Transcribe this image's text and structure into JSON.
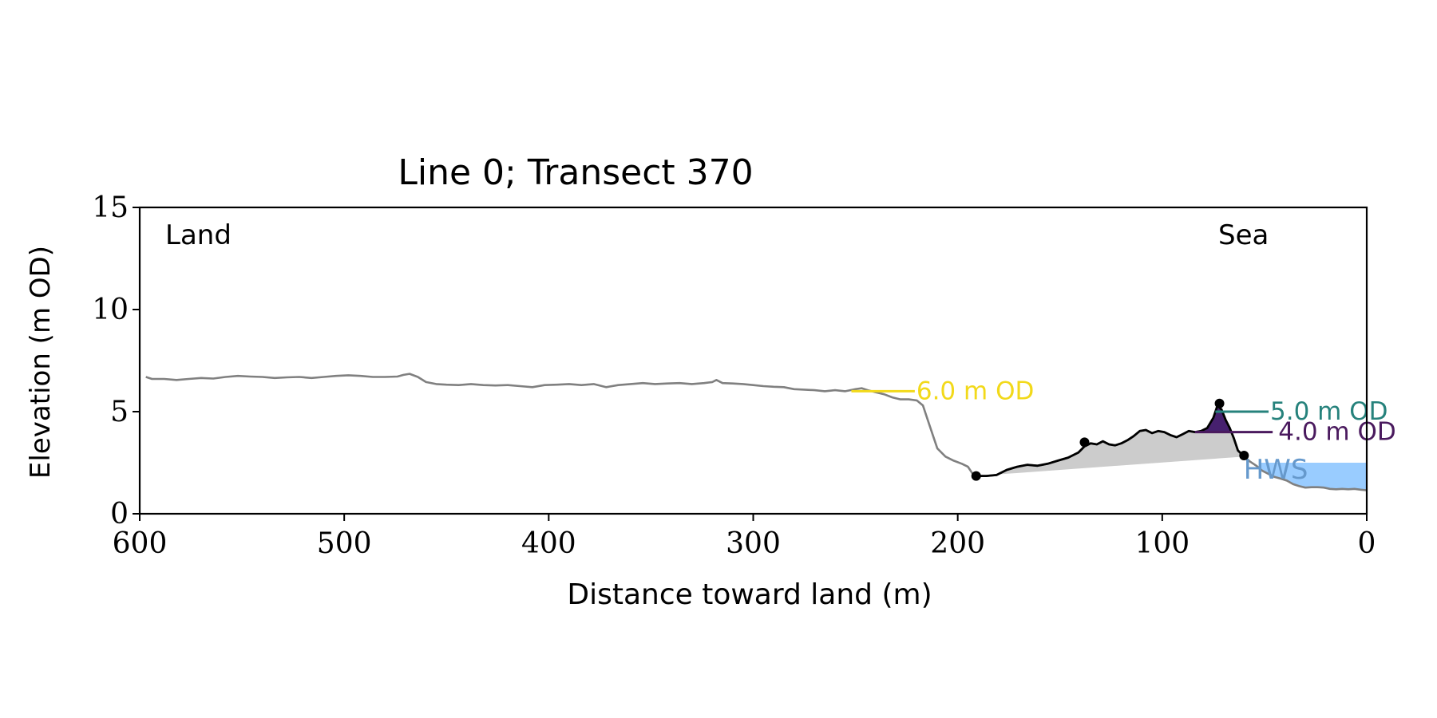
{
  "chart_data": {
    "type": "line",
    "title": "Line 0; Transect 370",
    "xlabel": "Distance toward land (m)",
    "ylabel": "Elevation (m OD)",
    "xlim": [
      600,
      0
    ],
    "ylim": [
      0,
      15
    ],
    "x_ticks": [
      600,
      500,
      400,
      300,
      200,
      100,
      0
    ],
    "y_ticks": [
      0,
      5,
      10,
      15
    ],
    "grid": false,
    "annotations": {
      "left": "Land",
      "right": "Sea"
    },
    "profile": {
      "color": "#808080",
      "points": [
        [
          597,
          6.7
        ],
        [
          594,
          6.6
        ],
        [
          588,
          6.6
        ],
        [
          582,
          6.55
        ],
        [
          576,
          6.6
        ],
        [
          570,
          6.65
        ],
        [
          564,
          6.62
        ],
        [
          558,
          6.7
        ],
        [
          552,
          6.75
        ],
        [
          546,
          6.72
        ],
        [
          540,
          6.7
        ],
        [
          534,
          6.65
        ],
        [
          528,
          6.68
        ],
        [
          522,
          6.7
        ],
        [
          516,
          6.65
        ],
        [
          510,
          6.7
        ],
        [
          504,
          6.75
        ],
        [
          498,
          6.78
        ],
        [
          492,
          6.75
        ],
        [
          486,
          6.7
        ],
        [
          480,
          6.7
        ],
        [
          474,
          6.72
        ],
        [
          471,
          6.8
        ],
        [
          468,
          6.85
        ],
        [
          464,
          6.7
        ],
        [
          460,
          6.45
        ],
        [
          455,
          6.35
        ],
        [
          450,
          6.32
        ],
        [
          444,
          6.3
        ],
        [
          438,
          6.35
        ],
        [
          432,
          6.3
        ],
        [
          426,
          6.28
        ],
        [
          420,
          6.3
        ],
        [
          414,
          6.25
        ],
        [
          408,
          6.2
        ],
        [
          402,
          6.3
        ],
        [
          396,
          6.32
        ],
        [
          390,
          6.35
        ],
        [
          384,
          6.3
        ],
        [
          378,
          6.35
        ],
        [
          372,
          6.2
        ],
        [
          366,
          6.3
        ],
        [
          360,
          6.35
        ],
        [
          354,
          6.4
        ],
        [
          348,
          6.35
        ],
        [
          342,
          6.38
        ],
        [
          336,
          6.4
        ],
        [
          330,
          6.35
        ],
        [
          324,
          6.4
        ],
        [
          320,
          6.45
        ],
        [
          318,
          6.55
        ],
        [
          315,
          6.4
        ],
        [
          310,
          6.38
        ],
        [
          305,
          6.35
        ],
        [
          300,
          6.3
        ],
        [
          295,
          6.25
        ],
        [
          290,
          6.22
        ],
        [
          285,
          6.2
        ],
        [
          280,
          6.1
        ],
        [
          275,
          6.08
        ],
        [
          270,
          6.05
        ],
        [
          265,
          6.0
        ],
        [
          260,
          6.05
        ],
        [
          255,
          6.0
        ],
        [
          250,
          6.1
        ],
        [
          247,
          6.15
        ],
        [
          244,
          6.05
        ],
        [
          240,
          5.95
        ],
        [
          236,
          5.85
        ],
        [
          232,
          5.7
        ],
        [
          228,
          5.6
        ],
        [
          224,
          5.6
        ],
        [
          220,
          5.55
        ],
        [
          217,
          5.3
        ],
        [
          215,
          4.7
        ],
        [
          212,
          3.8
        ],
        [
          210,
          3.2
        ],
        [
          206,
          2.8
        ],
        [
          202,
          2.6
        ],
        [
          198,
          2.45
        ],
        [
          195,
          2.3
        ],
        [
          193,
          2.0
        ],
        [
          191,
          1.85
        ],
        [
          186,
          1.85
        ],
        [
          181,
          1.9
        ],
        [
          176,
          2.15
        ],
        [
          171,
          2.3
        ],
        [
          166,
          2.4
        ],
        [
          161,
          2.35
        ],
        [
          156,
          2.45
        ],
        [
          151,
          2.6
        ],
        [
          146,
          2.75
        ],
        [
          141,
          3.0
        ],
        [
          138,
          3.3
        ],
        [
          135,
          3.45
        ],
        [
          132,
          3.4
        ],
        [
          129,
          3.55
        ],
        [
          126,
          3.4
        ],
        [
          123,
          3.35
        ],
        [
          120,
          3.45
        ],
        [
          117,
          3.6
        ],
        [
          114,
          3.8
        ],
        [
          111,
          4.05
        ],
        [
          108,
          4.1
        ],
        [
          105,
          3.95
        ],
        [
          102,
          4.05
        ],
        [
          99,
          4.0
        ],
        [
          96,
          3.85
        ],
        [
          93,
          3.75
        ],
        [
          90,
          3.9
        ],
        [
          87,
          4.05
        ],
        [
          84,
          4.0
        ],
        [
          81,
          4.05
        ],
        [
          78,
          4.2
        ],
        [
          75,
          4.7
        ],
        [
          73,
          5.3
        ],
        [
          71,
          5.1
        ],
        [
          69,
          4.6
        ],
        [
          67,
          4.2
        ],
        [
          65,
          3.7
        ],
        [
          63,
          3.1
        ],
        [
          60,
          2.8
        ],
        [
          57,
          2.55
        ],
        [
          54,
          2.35
        ],
        [
          51,
          2.1
        ],
        [
          48,
          1.95
        ],
        [
          45,
          1.8
        ],
        [
          42,
          1.72
        ],
        [
          39,
          1.62
        ],
        [
          36,
          1.45
        ],
        [
          33,
          1.35
        ],
        [
          30,
          1.28
        ],
        [
          27,
          1.3
        ],
        [
          24,
          1.3
        ],
        [
          21,
          1.28
        ],
        [
          18,
          1.22
        ],
        [
          15,
          1.2
        ],
        [
          12,
          1.22
        ],
        [
          9,
          1.2
        ],
        [
          6,
          1.22
        ],
        [
          3,
          1.18
        ],
        [
          0,
          1.15
        ]
      ]
    },
    "beach_segment": {
      "color": "#000000",
      "from_x": 191,
      "to_x": 60,
      "shade_color": "#cccccc",
      "shade_baseline": [
        [
          191,
          1.85
        ],
        [
          60,
          2.8
        ]
      ]
    },
    "markers": [
      [
        191,
        1.85
      ],
      [
        138,
        3.5
      ],
      [
        72,
        5.4
      ],
      [
        60,
        2.85
      ]
    ],
    "thresholds": [
      {
        "label": "6.0 m OD",
        "value": 6.0,
        "color": "#f2d91a",
        "x_from": 252,
        "x_to": 221,
        "label_x": 221
      },
      {
        "label": "5.0 m OD",
        "value": 5.0,
        "color": "#26827c",
        "x_from": 74,
        "x_to": 48,
        "label_x": 48,
        "fill_color": "#2f7c78"
      },
      {
        "label": "4.0 m OD",
        "value": 4.0,
        "color": "#4a1a5e",
        "x_from": 84,
        "x_to": 46,
        "label_x": 44,
        "fill_color": "#46206e"
      }
    ],
    "hws": {
      "label": "HWS",
      "value": 2.5,
      "color": "#99ccff",
      "label_color": "#6699cc",
      "x_from": 52,
      "x_to": 0,
      "label_x": 61
    }
  }
}
